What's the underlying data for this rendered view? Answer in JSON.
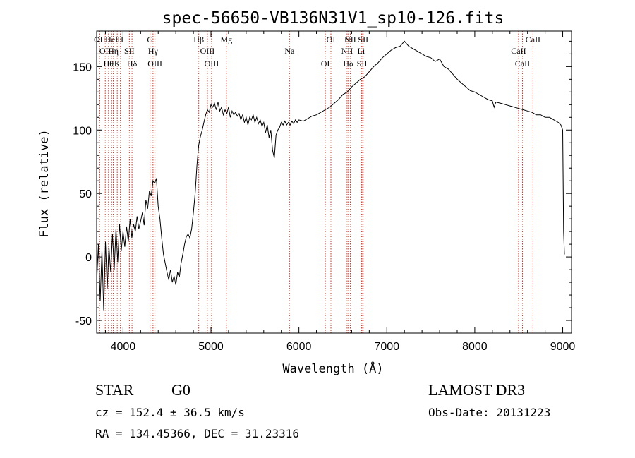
{
  "chart_data": {
    "type": "line",
    "title": "spec-56650-VB136N31V1_sp10-126.fits",
    "xlabel": "Wavelength (Å)",
    "ylabel": "Flux (relative)",
    "xlim": [
      3700,
      9100
    ],
    "ylim": [
      -60,
      178
    ],
    "xticks": [
      4000,
      5000,
      6000,
      7000,
      8000,
      9000
    ],
    "yticks": [
      -50,
      0,
      50,
      100,
      150
    ],
    "grid": false,
    "series": [
      {
        "color": "#000000",
        "points": [
          [
            3700,
            -20
          ],
          [
            3720,
            10
          ],
          [
            3740,
            -35
          ],
          [
            3760,
            5
          ],
          [
            3780,
            -42
          ],
          [
            3800,
            12
          ],
          [
            3820,
            -25
          ],
          [
            3840,
            8
          ],
          [
            3860,
            -12
          ],
          [
            3880,
            18
          ],
          [
            3900,
            -10
          ],
          [
            3920,
            22
          ],
          [
            3940,
            -4
          ],
          [
            3960,
            26
          ],
          [
            3980,
            5
          ],
          [
            4000,
            20
          ],
          [
            4020,
            8
          ],
          [
            4040,
            24
          ],
          [
            4060,
            12
          ],
          [
            4080,
            30
          ],
          [
            4100,
            15
          ],
          [
            4120,
            26
          ],
          [
            4140,
            20
          ],
          [
            4160,
            32
          ],
          [
            4180,
            22
          ],
          [
            4200,
            28
          ],
          [
            4220,
            35
          ],
          [
            4240,
            25
          ],
          [
            4260,
            45
          ],
          [
            4280,
            38
          ],
          [
            4300,
            52
          ],
          [
            4320,
            48
          ],
          [
            4340,
            60
          ],
          [
            4360,
            58
          ],
          [
            4380,
            62
          ],
          [
            4400,
            40
          ],
          [
            4420,
            30
          ],
          [
            4440,
            15
          ],
          [
            4460,
            2
          ],
          [
            4480,
            -5
          ],
          [
            4500,
            -12
          ],
          [
            4520,
            -18
          ],
          [
            4540,
            -10
          ],
          [
            4560,
            -20
          ],
          [
            4580,
            -15
          ],
          [
            4600,
            -22
          ],
          [
            4620,
            -12
          ],
          [
            4640,
            -16
          ],
          [
            4660,
            -5
          ],
          [
            4680,
            2
          ],
          [
            4700,
            10
          ],
          [
            4720,
            16
          ],
          [
            4740,
            18
          ],
          [
            4760,
            15
          ],
          [
            4780,
            22
          ],
          [
            4800,
            35
          ],
          [
            4820,
            50
          ],
          [
            4840,
            72
          ],
          [
            4860,
            88
          ],
          [
            4880,
            95
          ],
          [
            4900,
            100
          ],
          [
            4920,
            106
          ],
          [
            4940,
            112
          ],
          [
            4960,
            116
          ],
          [
            4980,
            114
          ],
          [
            5000,
            120
          ],
          [
            5020,
            118
          ],
          [
            5040,
            121
          ],
          [
            5060,
            116
          ],
          [
            5080,
            122
          ],
          [
            5100,
            115
          ],
          [
            5120,
            118
          ],
          [
            5140,
            112
          ],
          [
            5160,
            116
          ],
          [
            5180,
            113
          ],
          [
            5200,
            118
          ],
          [
            5220,
            110
          ],
          [
            5240,
            115
          ],
          [
            5260,
            112
          ],
          [
            5280,
            114
          ],
          [
            5300,
            111
          ],
          [
            5320,
            113
          ],
          [
            5340,
            108
          ],
          [
            5360,
            112
          ],
          [
            5380,
            106
          ],
          [
            5400,
            110
          ],
          [
            5420,
            104
          ],
          [
            5440,
            110
          ],
          [
            5460,
            108
          ],
          [
            5480,
            112
          ],
          [
            5500,
            106
          ],
          [
            5520,
            110
          ],
          [
            5540,
            105
          ],
          [
            5560,
            108
          ],
          [
            5580,
            103
          ],
          [
            5600,
            106
          ],
          [
            5620,
            98
          ],
          [
            5640,
            104
          ],
          [
            5660,
            94
          ],
          [
            5680,
            100
          ],
          [
            5700,
            84
          ],
          [
            5720,
            78
          ],
          [
            5740,
            96
          ],
          [
            5760,
            100
          ],
          [
            5780,
            102
          ],
          [
            5800,
            106
          ],
          [
            5820,
            104
          ],
          [
            5840,
            107
          ],
          [
            5860,
            104
          ],
          [
            5880,
            106
          ],
          [
            5900,
            104
          ],
          [
            5920,
            107
          ],
          [
            5940,
            105
          ],
          [
            5960,
            108
          ],
          [
            5980,
            106
          ],
          [
            6000,
            108
          ],
          [
            6050,
            107
          ],
          [
            6100,
            109
          ],
          [
            6150,
            111
          ],
          [
            6200,
            112
          ],
          [
            6250,
            114
          ],
          [
            6300,
            116
          ],
          [
            6350,
            118
          ],
          [
            6400,
            121
          ],
          [
            6450,
            124
          ],
          [
            6500,
            128
          ],
          [
            6550,
            130
          ],
          [
            6600,
            134
          ],
          [
            6650,
            137
          ],
          [
            6700,
            140
          ],
          [
            6750,
            142
          ],
          [
            6800,
            146
          ],
          [
            6850,
            150
          ],
          [
            6900,
            153
          ],
          [
            6950,
            157
          ],
          [
            7000,
            160
          ],
          [
            7050,
            163
          ],
          [
            7100,
            165
          ],
          [
            7150,
            166
          ],
          [
            7200,
            170
          ],
          [
            7250,
            166
          ],
          [
            7300,
            164
          ],
          [
            7350,
            162
          ],
          [
            7400,
            160
          ],
          [
            7450,
            158
          ],
          [
            7500,
            157
          ],
          [
            7550,
            154
          ],
          [
            7600,
            156
          ],
          [
            7650,
            150
          ],
          [
            7700,
            148
          ],
          [
            7750,
            144
          ],
          [
            7800,
            140
          ],
          [
            7850,
            137
          ],
          [
            7900,
            134
          ],
          [
            7950,
            131
          ],
          [
            8000,
            130
          ],
          [
            8050,
            128
          ],
          [
            8100,
            126
          ],
          [
            8150,
            124
          ],
          [
            8200,
            123
          ],
          [
            8220,
            118
          ],
          [
            8240,
            122
          ],
          [
            8300,
            121
          ],
          [
            8350,
            120
          ],
          [
            8400,
            119
          ],
          [
            8450,
            118
          ],
          [
            8500,
            117
          ],
          [
            8550,
            116
          ],
          [
            8600,
            115
          ],
          [
            8650,
            114
          ],
          [
            8700,
            112
          ],
          [
            8750,
            112
          ],
          [
            8800,
            110
          ],
          [
            8850,
            110
          ],
          [
            8900,
            108
          ],
          [
            8950,
            106
          ],
          [
            8980,
            104
          ],
          [
            9000,
            100
          ],
          [
            9010,
            20
          ],
          [
            9020,
            2
          ]
        ]
      }
    ],
    "lines": [
      {
        "x": 3735,
        "label": "OII"
      },
      {
        "x": 3798,
        "label": "OII"
      },
      {
        "x": 3835,
        "label": "Hθ"
      },
      {
        "x": 3870,
        "label": "HeI"
      },
      {
        "x": 3889,
        "label": "Hη"
      },
      {
        "x": 3934,
        "label": "K"
      },
      {
        "x": 3970,
        "label": "H"
      },
      {
        "x": 4072,
        "label": "SII"
      },
      {
        "x": 4102,
        "label": "Hδ"
      },
      {
        "x": 4307,
        "label": "G"
      },
      {
        "x": 4341,
        "label": "Hγ"
      },
      {
        "x": 4363,
        "label": "OIII"
      },
      {
        "x": 4861,
        "label": "Hβ"
      },
      {
        "x": 4959,
        "label": "OIII"
      },
      {
        "x": 5007,
        "label": "OIII"
      },
      {
        "x": 5175,
        "label": "Mg"
      },
      {
        "x": 5893,
        "label": "Na"
      },
      {
        "x": 6300,
        "label": "OI"
      },
      {
        "x": 6364,
        "label": "OI"
      },
      {
        "x": 6548,
        "label": "NII"
      },
      {
        "x": 6563,
        "label": "Hα"
      },
      {
        "x": 6584,
        "label": "NII"
      },
      {
        "x": 6708,
        "label": "Li"
      },
      {
        "x": 6717,
        "label": "SII"
      },
      {
        "x": 6731,
        "label": "SII"
      },
      {
        "x": 8498,
        "label": "CaII"
      },
      {
        "x": 8542,
        "label": "CaII"
      },
      {
        "x": 8662,
        "label": "CaII"
      }
    ]
  },
  "info": {
    "class": "STAR",
    "subclass": "G0",
    "survey": "LAMOST DR3",
    "cz": "cz = 152.4 ± 36.5 km/s",
    "obsdate": "Obs-Date: 20131223",
    "radec": "RA = 134.45366, DEC =  31.23316"
  }
}
